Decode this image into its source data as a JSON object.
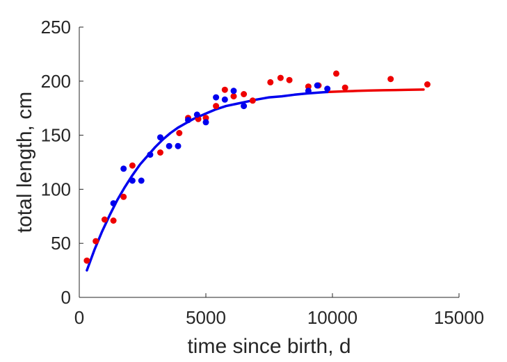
{
  "chart_data": {
    "type": "scatter",
    "title": "",
    "xlabel": "time since birth, d",
    "ylabel": "total length, cm",
    "xlim": [
      0,
      15000
    ],
    "ylim": [
      0,
      250
    ],
    "xticks": [
      0,
      5000,
      10000,
      15000
    ],
    "yticks": [
      0,
      50,
      100,
      150,
      200,
      250
    ],
    "grid": false,
    "legend": "none",
    "series": [
      {
        "color": "#ee0000",
        "kind": "points",
        "points": [
          [
            300,
            34
          ],
          [
            650,
            52
          ],
          [
            1000,
            72
          ],
          [
            1350,
            71
          ],
          [
            1750,
            93
          ],
          [
            2100,
            122
          ],
          [
            3200,
            134
          ],
          [
            3950,
            152
          ],
          [
            4300,
            166
          ],
          [
            4700,
            165
          ],
          [
            5000,
            166
          ],
          [
            5400,
            177
          ],
          [
            5750,
            192
          ],
          [
            6100,
            186
          ],
          [
            6500,
            188
          ],
          [
            6850,
            182
          ],
          [
            7550,
            199
          ],
          [
            7950,
            203
          ],
          [
            8300,
            201
          ],
          [
            9050,
            195
          ],
          [
            9450,
            196
          ],
          [
            10150,
            207
          ],
          [
            10500,
            194
          ],
          [
            12300,
            202
          ],
          [
            13750,
            197
          ]
        ]
      },
      {
        "color": "#0000ee",
        "kind": "points",
        "points": [
          [
            1350,
            87
          ],
          [
            1750,
            119
          ],
          [
            2100,
            108
          ],
          [
            2450,
            108
          ],
          [
            2800,
            132
          ],
          [
            3200,
            148
          ],
          [
            3550,
            140
          ],
          [
            3900,
            140
          ],
          [
            4300,
            164
          ],
          [
            4650,
            169
          ],
          [
            5000,
            162
          ],
          [
            5400,
            185
          ],
          [
            5750,
            183
          ],
          [
            6100,
            191
          ],
          [
            6500,
            177
          ],
          [
            9050,
            191
          ],
          [
            9400,
            196
          ],
          [
            9800,
            193
          ]
        ]
      },
      {
        "color": "#ee0000",
        "kind": "curve",
        "points": [
          [
            9800,
            190.0
          ],
          [
            10500,
            190.6
          ],
          [
            11000,
            191.0
          ],
          [
            11500,
            191.3
          ],
          [
            12000,
            191.6
          ],
          [
            12500,
            191.8
          ],
          [
            13000,
            192.0
          ],
          [
            13600,
            192.2
          ]
        ]
      },
      {
        "color": "#0000ee",
        "kind": "curve",
        "points": [
          [
            300,
            25
          ],
          [
            600,
            44
          ],
          [
            900,
            61
          ],
          [
            1200,
            76
          ],
          [
            1500,
            90
          ],
          [
            1800,
            102
          ],
          [
            2100,
            113
          ],
          [
            2400,
            123
          ],
          [
            2700,
            131
          ],
          [
            3000,
            139
          ],
          [
            3300,
            146
          ],
          [
            3600,
            152
          ],
          [
            3900,
            157
          ],
          [
            4200,
            161
          ],
          [
            4500,
            165
          ],
          [
            4800,
            168
          ],
          [
            5100,
            171
          ],
          [
            5400,
            174
          ],
          [
            5800,
            177
          ],
          [
            6200,
            179
          ],
          [
            6600,
            181
          ],
          [
            7000,
            183
          ],
          [
            7500,
            185
          ],
          [
            8000,
            186
          ],
          [
            8500,
            187.5
          ],
          [
            9000,
            188.6
          ],
          [
            9500,
            189.5
          ],
          [
            9800,
            190
          ]
        ]
      }
    ]
  }
}
